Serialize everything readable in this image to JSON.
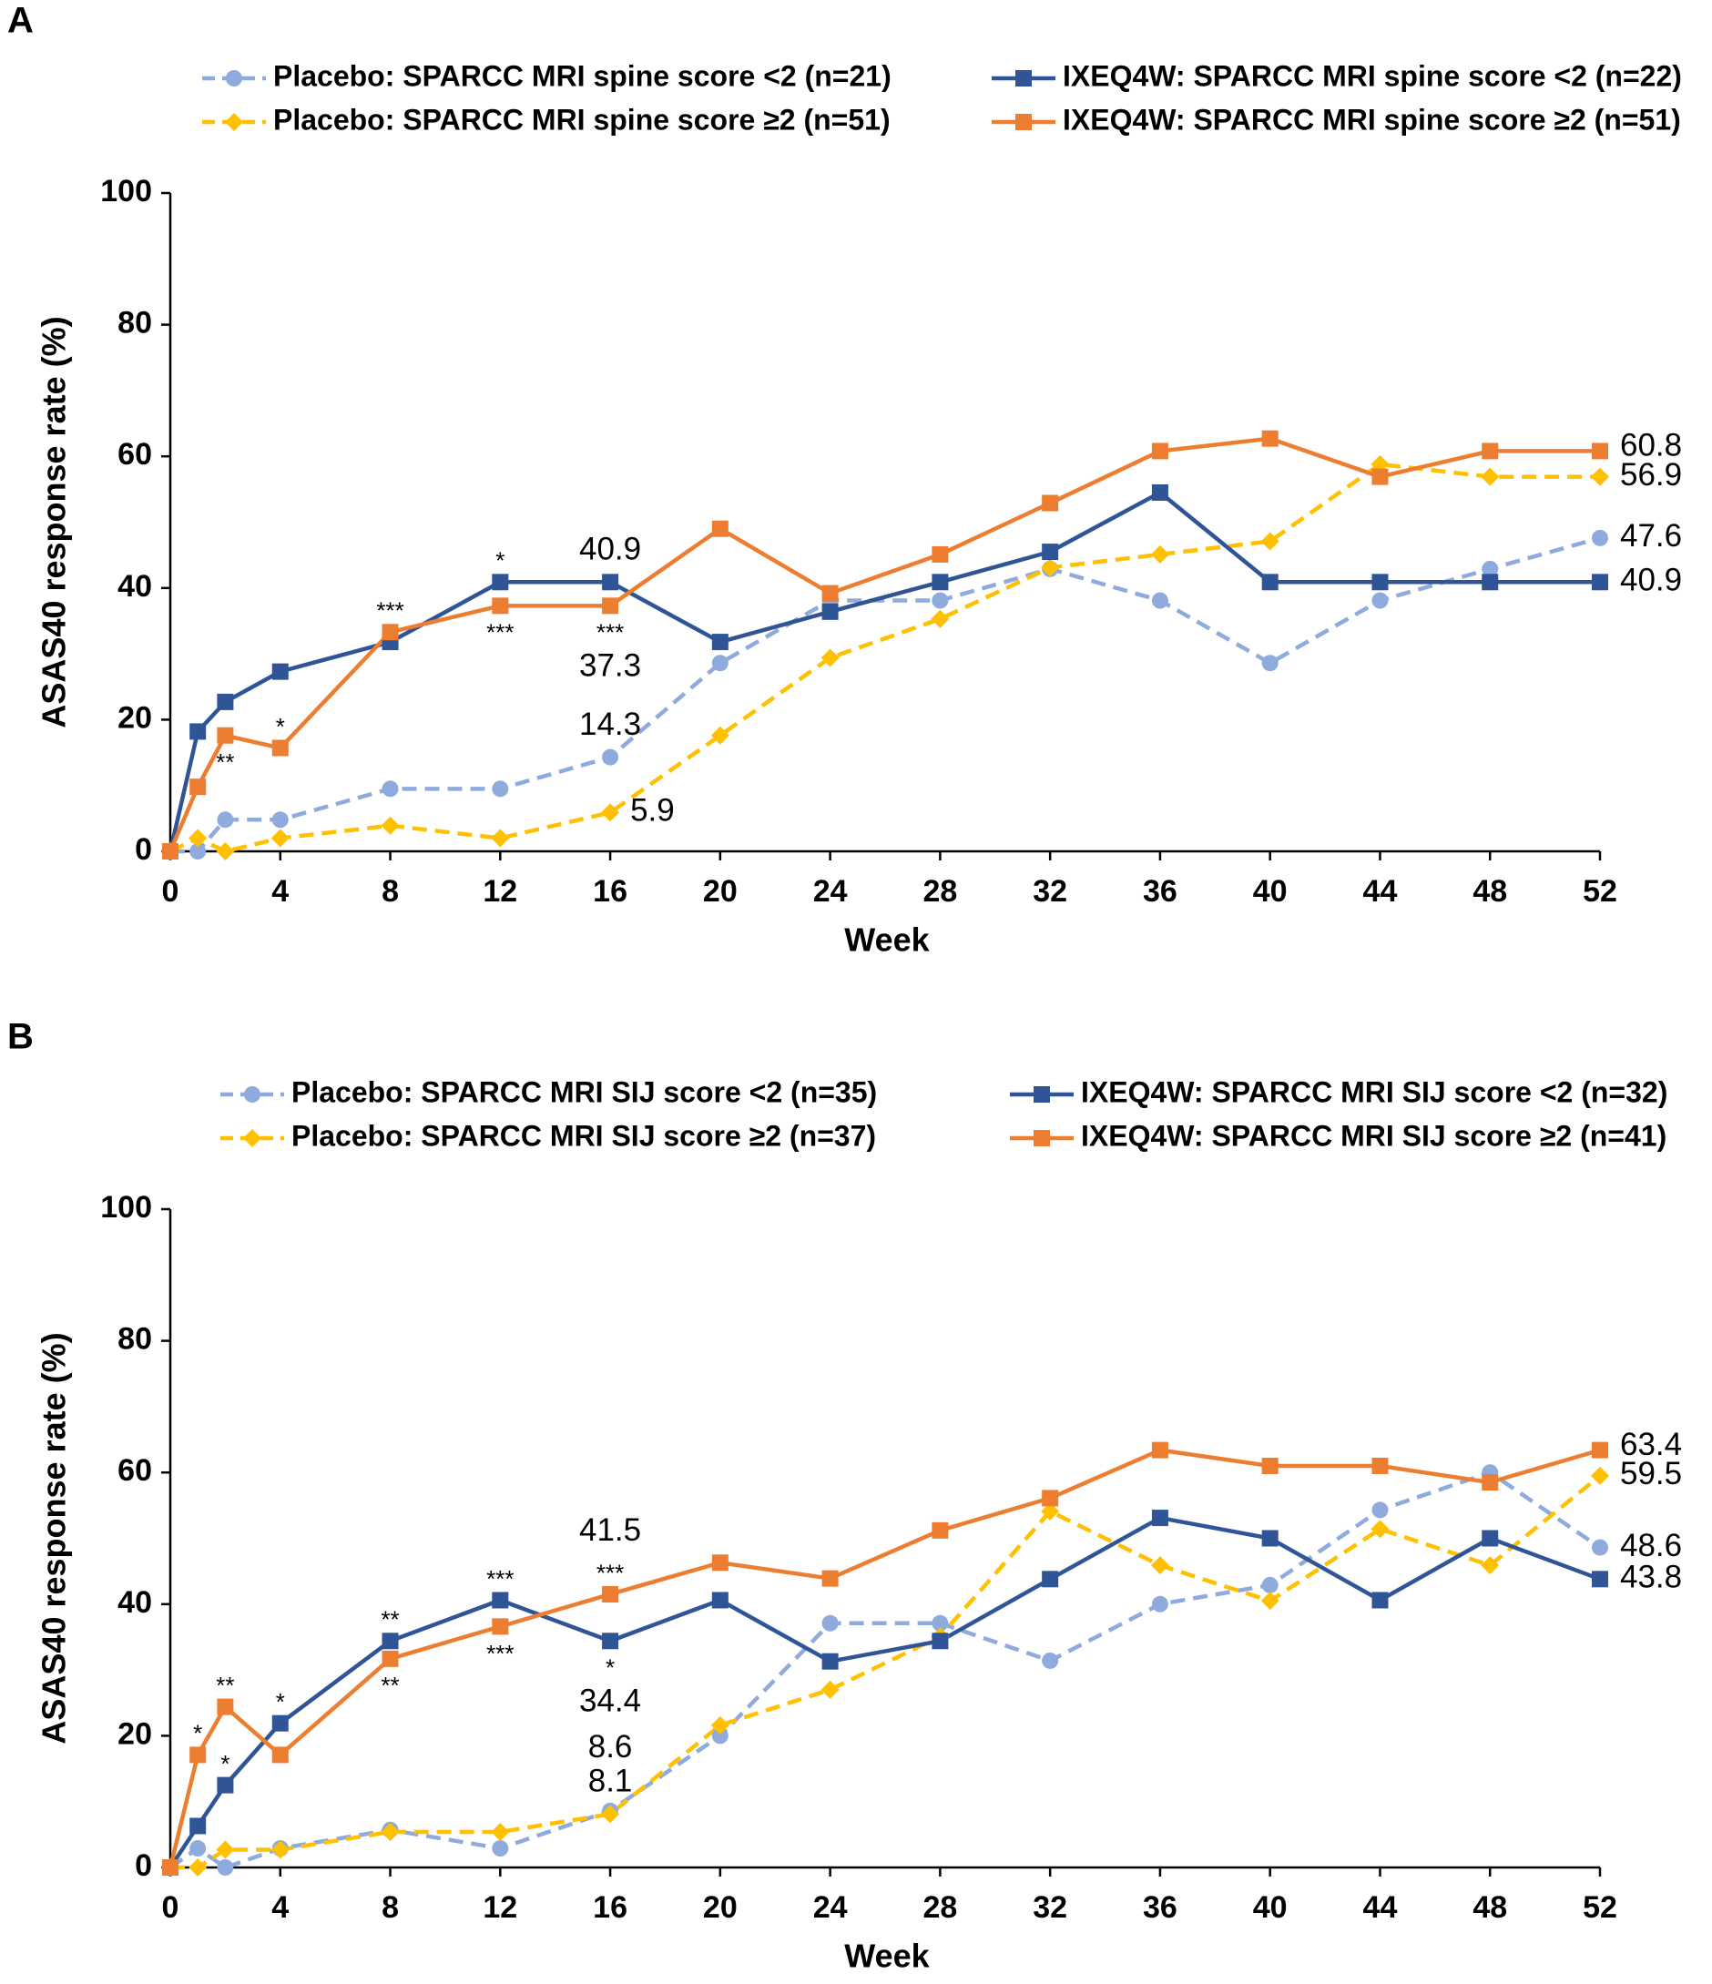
{
  "chart_data": [
    {
      "type": "line",
      "panel": "A",
      "x_label": "Week",
      "y_label": "ASAS40 response rate (%)",
      "x": [
        0,
        1,
        2,
        4,
        8,
        12,
        16,
        20,
        24,
        28,
        32,
        36,
        40,
        44,
        48,
        52
      ],
      "xlim": [
        0,
        52
      ],
      "xticks": [
        0,
        4,
        8,
        12,
        16,
        20,
        24,
        28,
        32,
        36,
        40,
        44,
        48,
        52
      ],
      "ylim": [
        0,
        100
      ],
      "yticks": [
        0,
        20,
        40,
        60,
        80,
        100
      ],
      "series": [
        {
          "name": "Placebo: SPARCC MRI spine score <2 (n=21)",
          "color": "#8faadc",
          "dash": true,
          "marker": "circle",
          "values": [
            0,
            0,
            4.8,
            4.8,
            9.5,
            9.5,
            14.3,
            28.6,
            38.1,
            38.1,
            42.9,
            38.1,
            28.6,
            38.1,
            42.9,
            47.6
          ]
        },
        {
          "name": "Placebo: SPARCC MRI spine score ≥2 (n=51)",
          "color": "#ffc000",
          "dash": true,
          "marker": "diamond",
          "values": [
            0,
            2.0,
            0,
            2.0,
            3.9,
            2.0,
            5.9,
            17.6,
            29.4,
            35.3,
            43.1,
            45.1,
            47.1,
            58.8,
            56.9,
            56.9
          ]
        },
        {
          "name": "IXEQ4W: SPARCC MRI spine score <2 (n=22)",
          "color": "#2f5597",
          "dash": false,
          "marker": "square",
          "values": [
            0,
            18.2,
            22.7,
            27.3,
            31.8,
            40.9,
            40.9,
            31.8,
            36.4,
            40.9,
            45.5,
            54.5,
            40.9,
            40.9,
            40.9,
            40.9
          ]
        },
        {
          "name": "IXEQ4W: SPARCC MRI spine score ≥2 (n=51)",
          "color": "#ed7d31",
          "dash": false,
          "marker": "square",
          "values": [
            0,
            9.8,
            17.6,
            15.7,
            33.3,
            37.3,
            37.3,
            49.0,
            39.2,
            45.1,
            52.9,
            60.8,
            62.7,
            56.9,
            60.8,
            60.8
          ]
        }
      ],
      "data_labels": [
        {
          "series": 2,
          "index": 6,
          "position": "above"
        },
        {
          "series": 2,
          "index": 15,
          "position": "right"
        },
        {
          "series": 3,
          "index": 6,
          "position": "far-below"
        },
        {
          "series": 3,
          "index": 15,
          "position": "right-up"
        },
        {
          "series": 0,
          "index": 6,
          "position": "above"
        },
        {
          "series": 0,
          "index": 15,
          "position": "right"
        },
        {
          "series": 1,
          "index": 6,
          "position": "right"
        },
        {
          "series": 1,
          "index": 15,
          "position": "right"
        }
      ],
      "annotations": [
        {
          "text": "*",
          "series": 2,
          "index": 5,
          "position": "above"
        },
        {
          "text": "**",
          "series": 3,
          "index": 2,
          "position": "below"
        },
        {
          "text": "*",
          "series": 3,
          "index": 3,
          "position": "above"
        },
        {
          "text": "***",
          "series": 3,
          "index": 4,
          "position": "above"
        },
        {
          "text": "***",
          "series": 3,
          "index": 5,
          "position": "below"
        },
        {
          "text": "***",
          "series": 3,
          "index": 6,
          "position": "below"
        }
      ]
    },
    {
      "type": "line",
      "panel": "B",
      "x_label": "Week",
      "y_label": "ASAS40 response rate (%)",
      "x": [
        0,
        1,
        2,
        4,
        8,
        12,
        16,
        20,
        24,
        28,
        32,
        36,
        40,
        44,
        48,
        52
      ],
      "xlim": [
        0,
        52
      ],
      "xticks": [
        0,
        4,
        8,
        12,
        16,
        20,
        24,
        28,
        32,
        36,
        40,
        44,
        48,
        52
      ],
      "ylim": [
        0,
        100
      ],
      "yticks": [
        0,
        20,
        40,
        60,
        80,
        100
      ],
      "series": [
        {
          "name": "Placebo: SPARCC MRI SIJ score <2 (n=35)",
          "color": "#8faadc",
          "dash": true,
          "marker": "circle",
          "values": [
            0,
            2.9,
            0,
            2.9,
            5.7,
            2.9,
            8.6,
            20.0,
            37.1,
            37.1,
            31.4,
            40.0,
            42.9,
            54.3,
            60.0,
            48.6
          ]
        },
        {
          "name": "Placebo: SPARCC MRI SIJ score ≥2 (n=37)",
          "color": "#ffc000",
          "dash": true,
          "marker": "diamond",
          "values": [
            0,
            0,
            2.7,
            2.7,
            5.4,
            5.4,
            8.1,
            21.6,
            27.0,
            35.1,
            54.1,
            45.9,
            40.5,
            51.4,
            45.9,
            59.5
          ]
        },
        {
          "name": "IXEQ4W: SPARCC MRI SIJ score <2 (n=32)",
          "color": "#2f5597",
          "dash": false,
          "marker": "square",
          "values": [
            0,
            6.3,
            12.5,
            21.9,
            34.4,
            40.6,
            34.4,
            40.6,
            31.3,
            34.4,
            43.8,
            53.1,
            50.0,
            40.6,
            50.0,
            43.8
          ]
        },
        {
          "name": "IXEQ4W: SPARCC MRI SIJ score ≥2 (n=41)",
          "color": "#ed7d31",
          "dash": false,
          "marker": "square",
          "values": [
            0,
            17.1,
            24.4,
            17.1,
            31.7,
            36.6,
            41.5,
            46.3,
            43.9,
            51.2,
            56.1,
            63.4,
            61.0,
            61.0,
            58.5,
            63.4
          ]
        }
      ],
      "data_labels": [
        {
          "series": 3,
          "index": 6,
          "position": "far-above"
        },
        {
          "series": 3,
          "index": 15,
          "position": "right-up"
        },
        {
          "series": 2,
          "index": 6,
          "position": "far-below"
        },
        {
          "series": 2,
          "index": 15,
          "position": "right"
        },
        {
          "series": 0,
          "index": 6,
          "position": "far-above"
        },
        {
          "series": 0,
          "index": 15,
          "position": "right"
        },
        {
          "series": 1,
          "index": 6,
          "position": "above"
        },
        {
          "series": 1,
          "index": 15,
          "position": "right"
        }
      ],
      "annotations": [
        {
          "text": "*",
          "series": 3,
          "index": 1,
          "position": "above"
        },
        {
          "text": "**",
          "series": 3,
          "index": 2,
          "position": "above"
        },
        {
          "text": "**",
          "series": 3,
          "index": 4,
          "position": "below"
        },
        {
          "text": "***",
          "series": 3,
          "index": 5,
          "position": "below"
        },
        {
          "text": "***",
          "series": 3,
          "index": 6,
          "position": "above"
        },
        {
          "text": "*",
          "series": 2,
          "index": 2,
          "position": "above"
        },
        {
          "text": "*",
          "series": 2,
          "index": 3,
          "position": "above"
        },
        {
          "text": "**",
          "series": 2,
          "index": 4,
          "position": "above"
        },
        {
          "text": "***",
          "series": 2,
          "index": 5,
          "position": "above"
        },
        {
          "text": "*",
          "series": 2,
          "index": 6,
          "position": "below"
        }
      ]
    }
  ]
}
